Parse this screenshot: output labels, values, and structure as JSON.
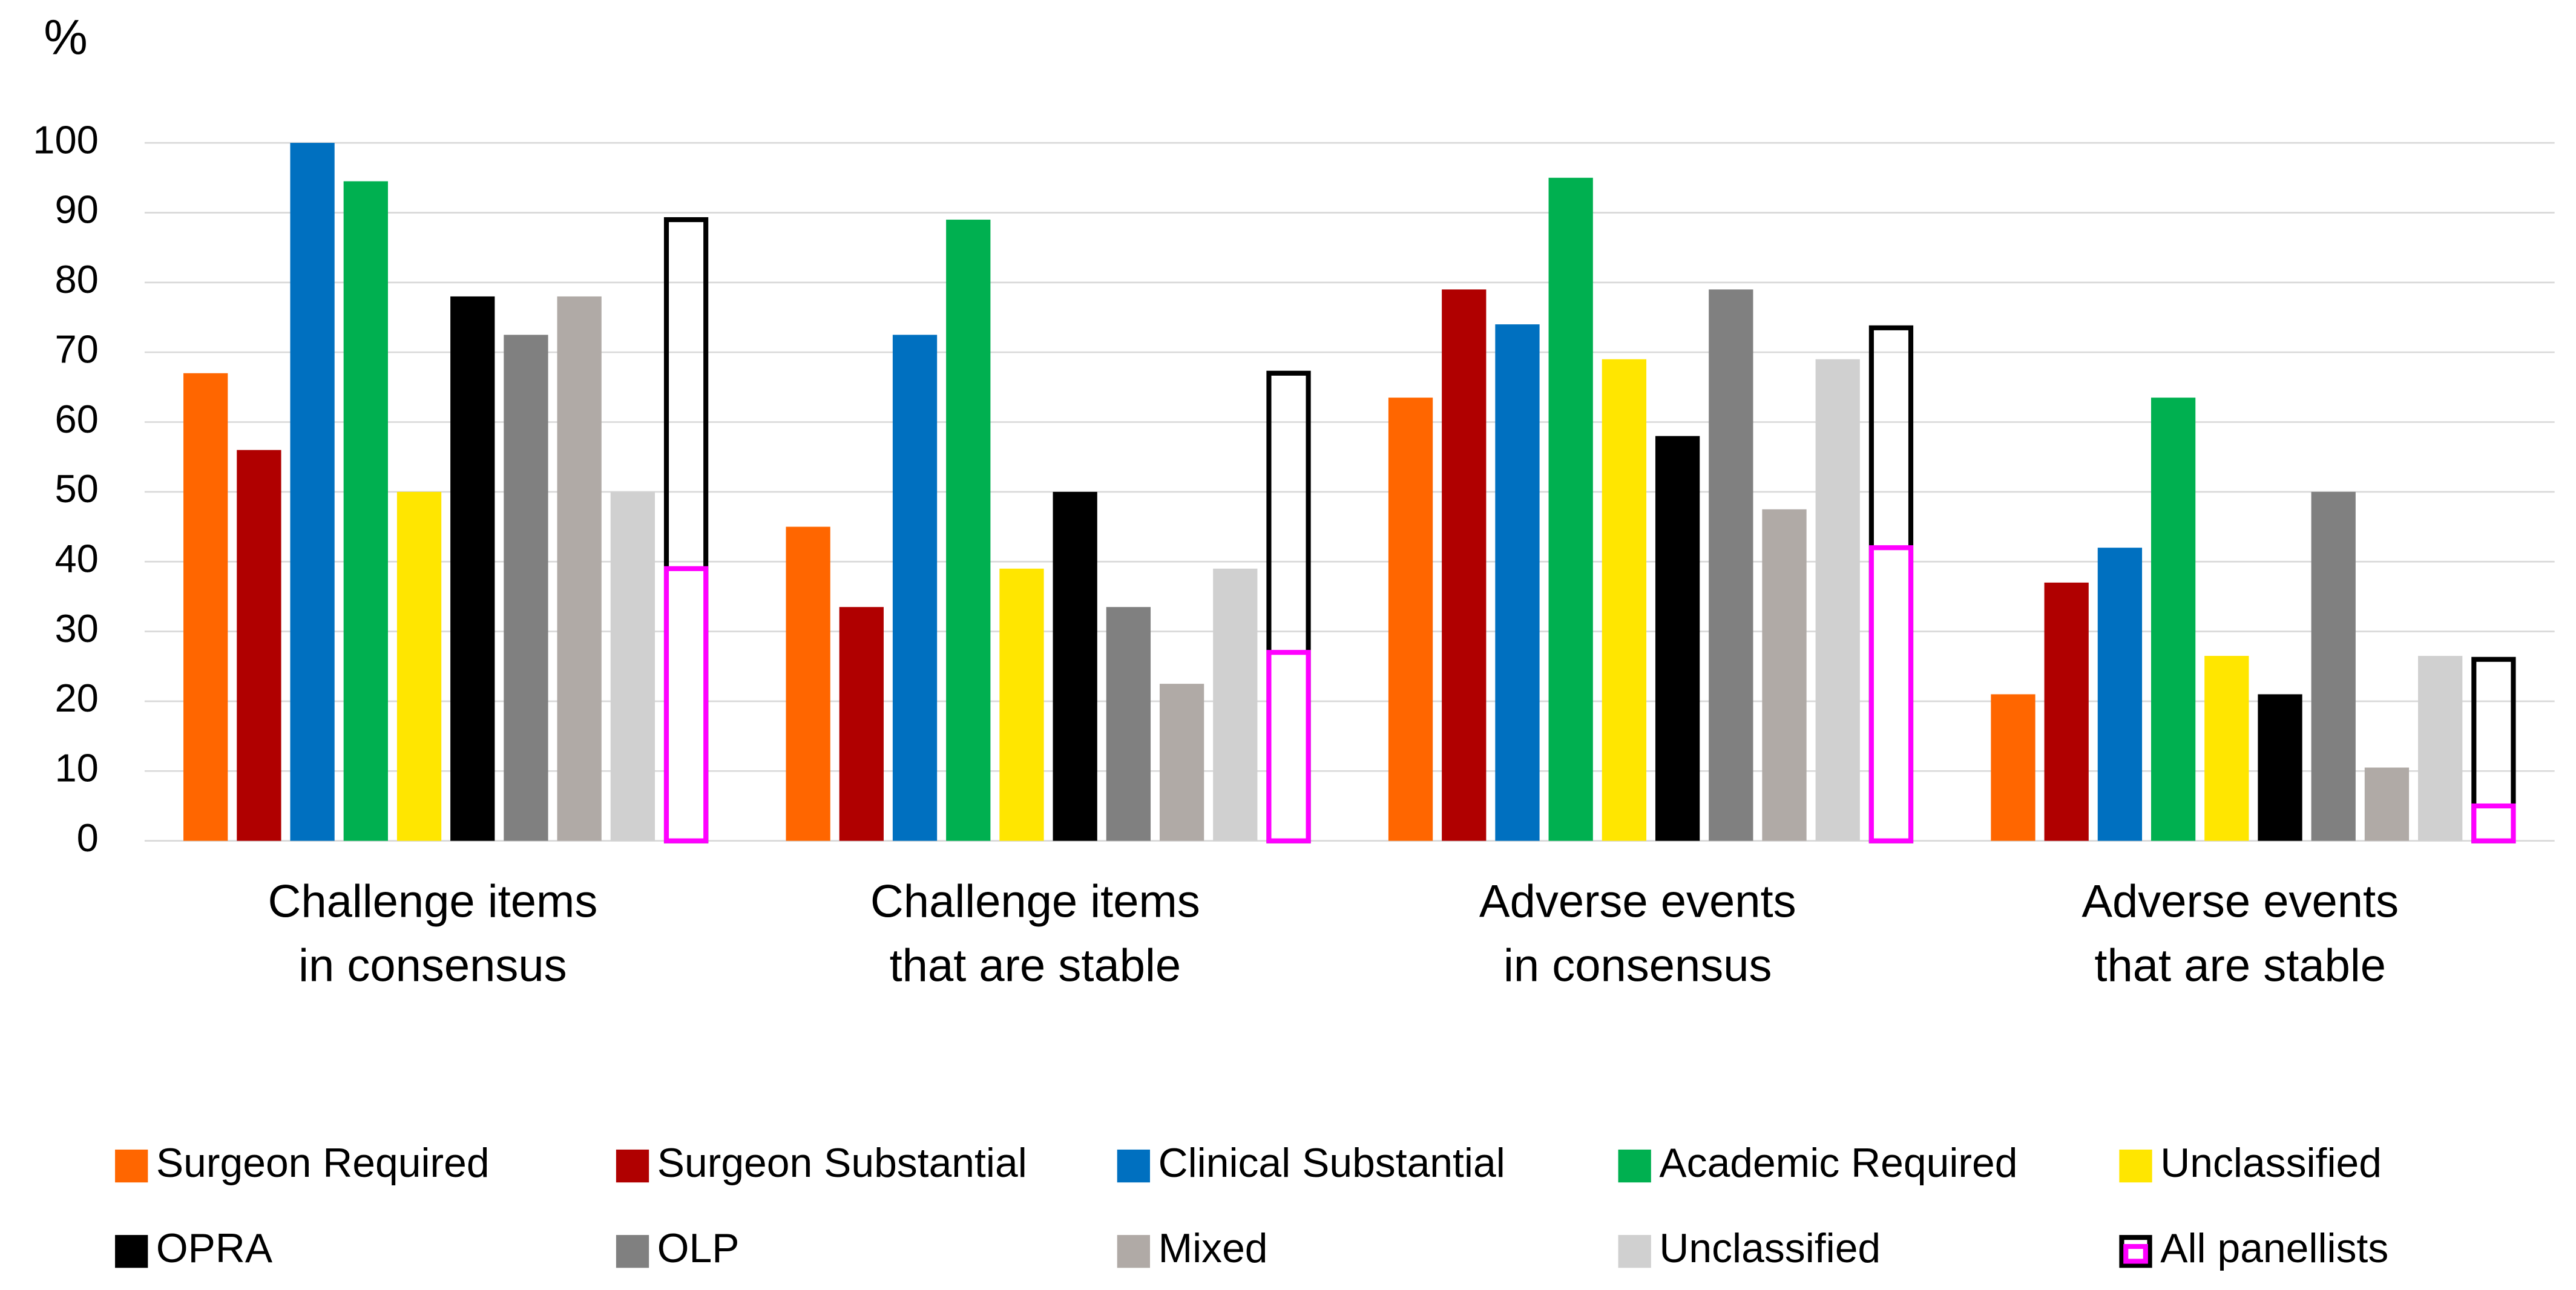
{
  "chart_data": {
    "type": "bar",
    "ylabel": "%",
    "categories": [
      [
        "Challenge items",
        "in consensus"
      ],
      [
        "Challenge items",
        "that are stable"
      ],
      [
        "Adverse events",
        "in consensus"
      ],
      [
        "Adverse events",
        "that are stable"
      ]
    ],
    "series": [
      {
        "name": "Surgeon Required",
        "color": "#ff6600",
        "values": [
          67,
          45,
          63.5,
          21
        ]
      },
      {
        "name": "Surgeon Substantial",
        "color": "#b00000",
        "values": [
          56,
          33.5,
          79,
          37
        ]
      },
      {
        "name": "Clinical Substantial",
        "color": "#0070c0",
        "values": [
          100,
          72.5,
          74,
          42
        ]
      },
      {
        "name": "Academic Required",
        "color": "#00b050",
        "values": [
          94.5,
          89,
          95,
          63.5
        ]
      },
      {
        "name": "Unclassified",
        "color": "#ffe600",
        "values": [
          50,
          39,
          69,
          26.5
        ]
      },
      {
        "name": "OPRA",
        "color": "#000000",
        "values": [
          78,
          50,
          58,
          21
        ]
      },
      {
        "name": "OLP",
        "color": "#808080",
        "values": [
          72.5,
          33.5,
          79,
          50
        ]
      },
      {
        "name": "Mixed",
        "color": "#b0aaa6",
        "values": [
          78,
          22.5,
          47.5,
          10.5
        ]
      },
      {
        "name": "Unclassified",
        "color": "#d0d0d0",
        "values": [
          50,
          39,
          69,
          26.5
        ]
      },
      {
        "name": "All panellists",
        "color": "#000000",
        "outline": true,
        "values": [
          89,
          67,
          73.5,
          26
        ],
        "inner_color": "#ff00ff",
        "inner_values": [
          39,
          27,
          42,
          5
        ]
      }
    ],
    "ylim": [
      0,
      100
    ],
    "yticks": [
      0,
      10,
      20,
      30,
      40,
      50,
      60,
      70,
      80,
      90,
      100
    ],
    "grid": true
  }
}
